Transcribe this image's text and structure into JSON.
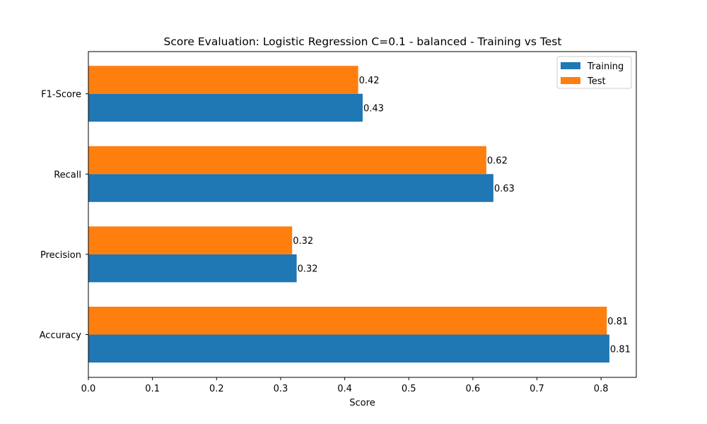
{
  "chart_data": {
    "type": "bar",
    "orientation": "horizontal",
    "title": "Score Evaluation: Logistic Regression C=0.1 - balanced - Training vs Test",
    "xlabel": "Score",
    "ylabel": "",
    "xlim": [
      0,
      0.855
    ],
    "x_ticks": [
      "0.0",
      "0.1",
      "0.2",
      "0.3",
      "0.4",
      "0.5",
      "0.6",
      "0.7",
      "0.8"
    ],
    "categories": [
      "Accuracy",
      "Precision",
      "Recall",
      "F1-Score"
    ],
    "series": [
      {
        "name": "Training",
        "color": "#1f77b4",
        "values": [
          0.813,
          0.325,
          0.632,
          0.428
        ],
        "labels": [
          "0.81",
          "0.32",
          "0.63",
          "0.43"
        ]
      },
      {
        "name": "Test",
        "color": "#ff7f0e",
        "values": [
          0.809,
          0.318,
          0.621,
          0.421
        ],
        "labels": [
          "0.81",
          "0.32",
          "0.62",
          "0.42"
        ]
      }
    ],
    "grid": false,
    "legend_position": "top-right"
  }
}
